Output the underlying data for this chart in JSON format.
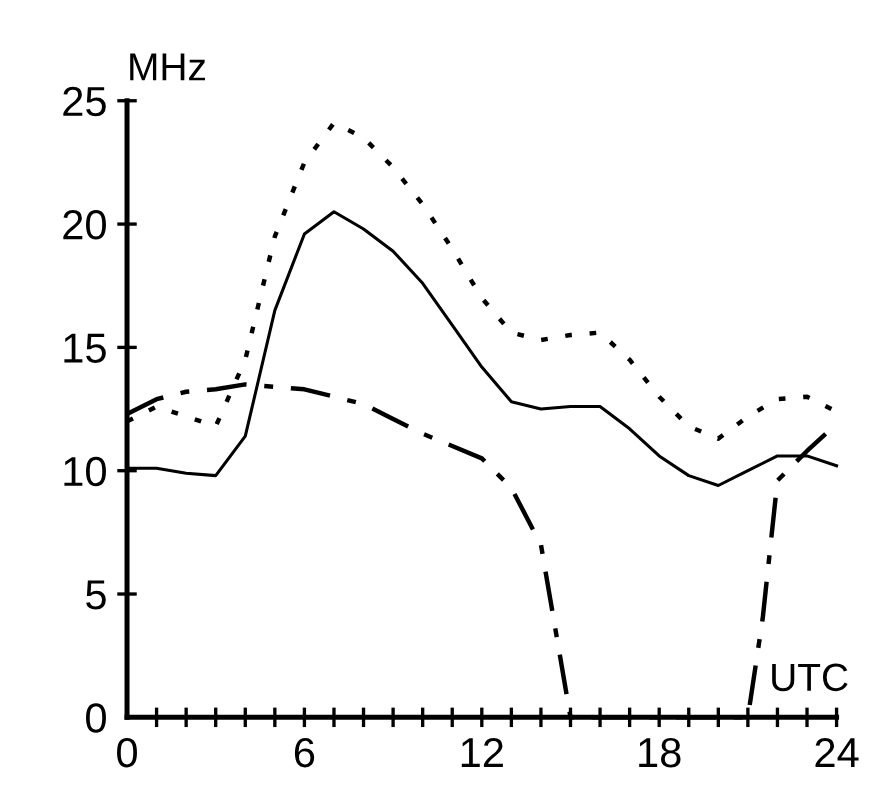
{
  "chart_data": {
    "type": "line",
    "ylabel": "MHz",
    "xlabel": "UTC",
    "x": [
      0,
      1,
      2,
      3,
      4,
      5,
      6,
      7,
      8,
      9,
      10,
      11,
      12,
      13,
      14,
      15,
      16,
      17,
      18,
      19,
      20,
      21,
      22,
      23,
      24
    ],
    "series": [
      {
        "color": "#000000",
        "line_style": "solid",
        "values": [
          10.1,
          10.1,
          9.9,
          9.8,
          11.4,
          16.5,
          19.6,
          20.5,
          19.8,
          18.9,
          17.6,
          15.9,
          14.2,
          12.8,
          12.5,
          12.6,
          12.6,
          11.7,
          10.6,
          9.8,
          9.4,
          10.0,
          10.6,
          10.6,
          10.2
        ]
      },
      {
        "color": "#000000",
        "line_style": "dotted",
        "values": [
          12.0,
          12.6,
          12.2,
          11.8,
          14.5,
          19.5,
          22.5,
          24.1,
          23.5,
          22.3,
          20.8,
          19.0,
          17.0,
          15.6,
          15.3,
          15.5,
          15.6,
          14.5,
          13.0,
          11.8,
          11.3,
          12.2,
          12.9,
          13.0,
          12.4
        ]
      },
      {
        "color": "#000000",
        "line_style": "dashed",
        "x": [
          0,
          1,
          2,
          3,
          4,
          5,
          6,
          7,
          8,
          9,
          10,
          11,
          12,
          13,
          14,
          14.5,
          15,
          16,
          17,
          18,
          19,
          20,
          21,
          21.5,
          22,
          23,
          24
        ],
        "values": [
          12.3,
          12.9,
          13.2,
          13.3,
          13.5,
          13.4,
          13.3,
          13.0,
          12.7,
          12.1,
          11.5,
          11.0,
          10.5,
          9.3,
          7.0,
          3.5,
          0,
          0,
          0,
          0,
          0,
          0,
          0,
          4.0,
          9.6,
          10.8,
          11.9
        ]
      }
    ],
    "xlim": [
      0,
      24
    ],
    "ylim": [
      0,
      25
    ],
    "xticks": [
      0,
      {
        "value": 1,
        "label": null
      },
      {
        "value": 2,
        "label": null
      },
      {
        "value": 3,
        "label": null
      },
      {
        "value": 4,
        "label": null
      },
      {
        "value": 5,
        "label": null
      },
      6,
      {
        "value": 7,
        "label": null
      },
      {
        "value": 8,
        "label": null
      },
      {
        "value": 9,
        "label": null
      },
      {
        "value": 10,
        "label": null
      },
      {
        "value": 11,
        "label": null
      },
      12,
      {
        "value": 13,
        "label": null
      },
      {
        "value": 14,
        "label": null
      },
      {
        "value": 15,
        "label": null
      },
      {
        "value": 16,
        "label": null
      },
      {
        "value": 17,
        "label": null
      },
      18,
      {
        "value": 19,
        "label": null
      },
      {
        "value": 20,
        "label": null
      },
      {
        "value": 21,
        "label": null
      },
      {
        "value": 22,
        "label": null
      },
      {
        "value": 23,
        "label": null
      },
      24
    ],
    "yticks": [
      0,
      5,
      10,
      15,
      20,
      25
    ],
    "grid": false,
    "legend": false,
    "marker": "none"
  }
}
